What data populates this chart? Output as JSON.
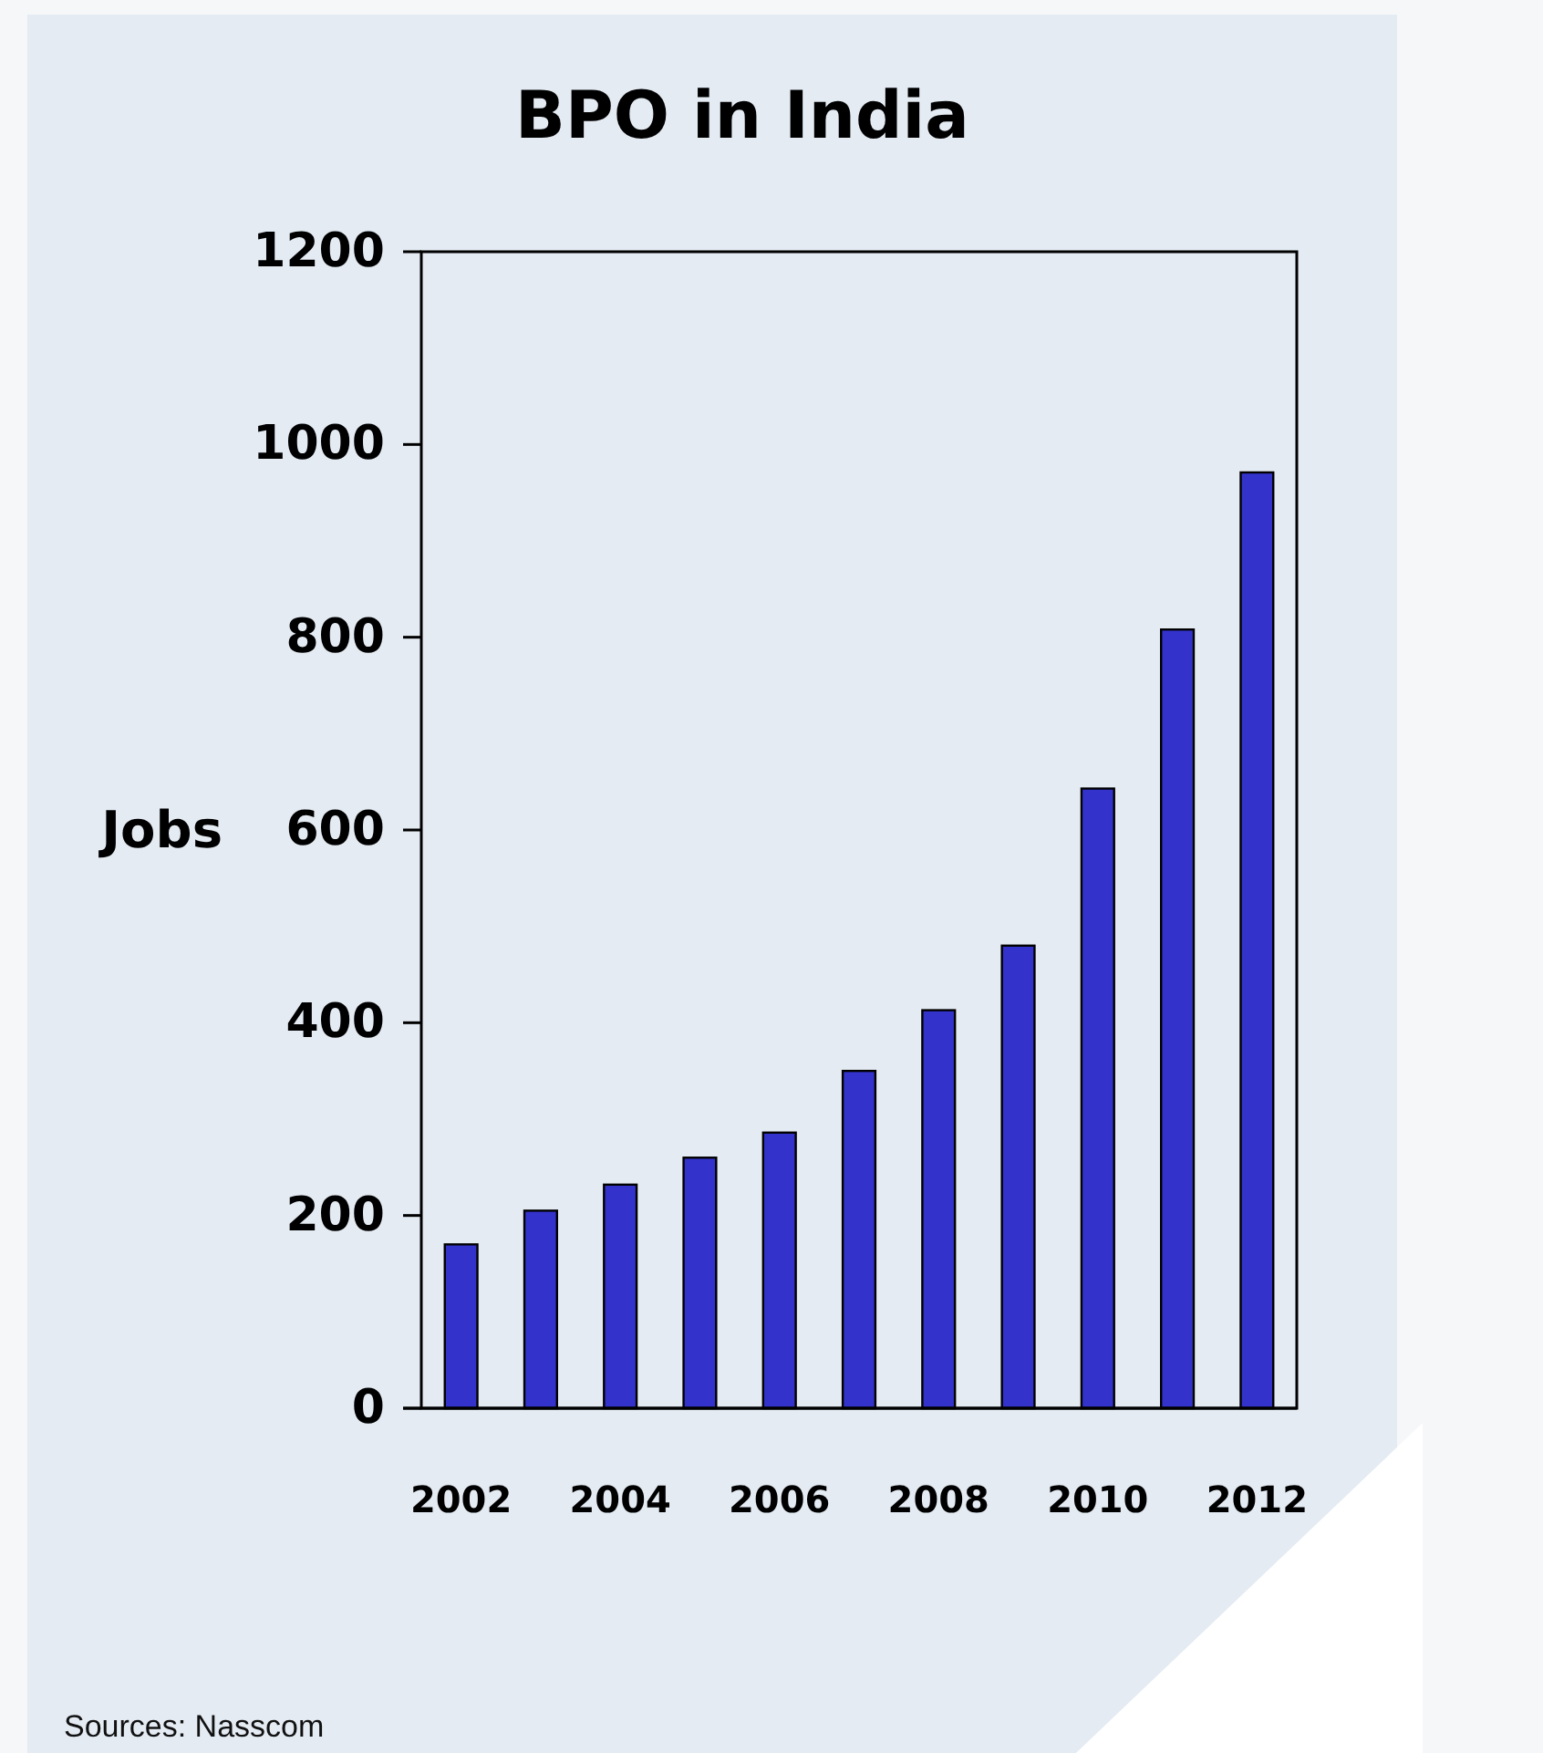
{
  "chart_data": {
    "type": "bar",
    "title": "BPO in India",
    "ylabel": "Jobs",
    "categories": [
      "2002",
      null,
      "2004",
      null,
      "2006",
      null,
      "2008",
      null,
      "2010",
      null,
      "2012"
    ],
    "values": [
      170,
      205,
      232,
      260,
      286,
      350,
      413,
      480,
      643,
      808,
      971
    ],
    "color": "#3333cc",
    "ylim": [
      0,
      1200
    ],
    "yticks": [
      0,
      200,
      400,
      600,
      800,
      1000,
      1200
    ],
    "annotations": [
      "Sources: Nasscom"
    ]
  }
}
